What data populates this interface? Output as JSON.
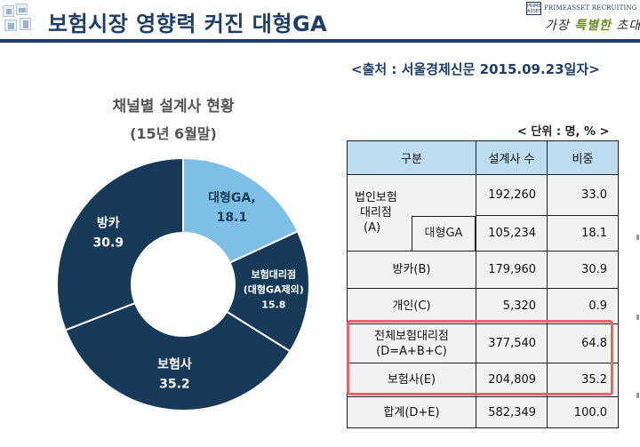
{
  "header": {
    "title": "보험시장 영향력 커진 대형GA",
    "brand_mark": "PRIME ASSET",
    "brand_name": "PRIMEASSET RECRUITING",
    "slogan_part1": "가장 ",
    "slogan_part2": "특별한",
    "slogan_part3": " 초대"
  },
  "source": "<출처 : 서울경제신문 2015.09.23일자>",
  "chart_data": {
    "type": "donut",
    "title": "채널별 설계사 현황",
    "subtitle": "(15년 6월말)",
    "slices": [
      {
        "name": "대형GA,",
        "value": 18.1,
        "color": "#7ebfe5",
        "text_color": "#1b3c5a"
      },
      {
        "name": "보험대리점",
        "name2": "(대형GA제외)",
        "value": 15.8,
        "color": "#173a58",
        "text_color": "#ffffff"
      },
      {
        "name": "보험사",
        "value": 35.2,
        "color": "#173a58",
        "text_color": "#ffffff"
      },
      {
        "name": "방카",
        "value": 30.9,
        "color": "#173a58",
        "text_color": "#ffffff"
      }
    ],
    "slice_border": "#ffffff"
  },
  "table": {
    "unit": "< 단위 : 명, % >",
    "headers": [
      "구분",
      "설계사 수",
      "비중"
    ],
    "rows": [
      {
        "label_lines": [
          "법인보험",
          "대리점",
          "(A)"
        ],
        "count": "192,260",
        "share": "33.0"
      },
      {
        "label": "대형GA",
        "count": "105,234",
        "share": "18.1"
      },
      {
        "label": "방카(B)",
        "count": "179,960",
        "share": "30.9"
      },
      {
        "label": "개인(C)",
        "count": "5,320",
        "share": "0.9"
      },
      {
        "label_lines": [
          "전체보험대리점",
          "(D=A+B+C)"
        ],
        "count": "377,540",
        "share": "64.8"
      },
      {
        "label": "보험사(E)",
        "count": "204,809",
        "share": "35.2"
      },
      {
        "label": "합계(D+E)",
        "count": "582,349",
        "share": "100.0"
      }
    ],
    "highlight_color": "#e8636a"
  }
}
